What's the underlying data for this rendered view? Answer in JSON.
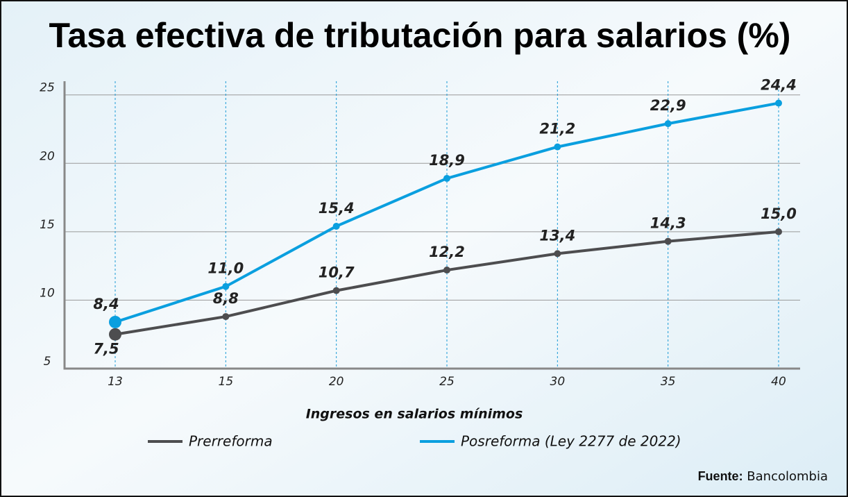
{
  "chart_data": {
    "type": "line",
    "title": "Tasa efectiva de tributación para salarios  (%)",
    "x_label": "Ingresos en salarios mínimos",
    "categories": [
      "13",
      "15",
      "20",
      "25",
      "30",
      "35",
      "40"
    ],
    "series": [
      {
        "name": "Prerreforma",
        "color": "#4d4d4f",
        "values": [
          7.5,
          8.8,
          10.7,
          12.2,
          13.4,
          14.3,
          15.0
        ],
        "value_labels": [
          "7,5",
          "8,8",
          "10,7",
          "12,2",
          "13,4",
          "14,3",
          "15,0"
        ]
      },
      {
        "name": "Posreforma  (Ley 2277 de 2022)",
        "color": "#0a9fdf",
        "values": [
          8.4,
          11.0,
          15.4,
          18.9,
          21.2,
          22.9,
          24.4
        ],
        "value_labels": [
          "8,4",
          "11,0",
          "15,4",
          "18,9",
          "21,2",
          "22,9",
          "24,4"
        ]
      }
    ],
    "ylim": [
      5,
      26
    ],
    "yticks": [
      5,
      10,
      15,
      20,
      25
    ],
    "grid": true,
    "source": {
      "label": "Fuente:",
      "text": "Bancolombia"
    }
  }
}
